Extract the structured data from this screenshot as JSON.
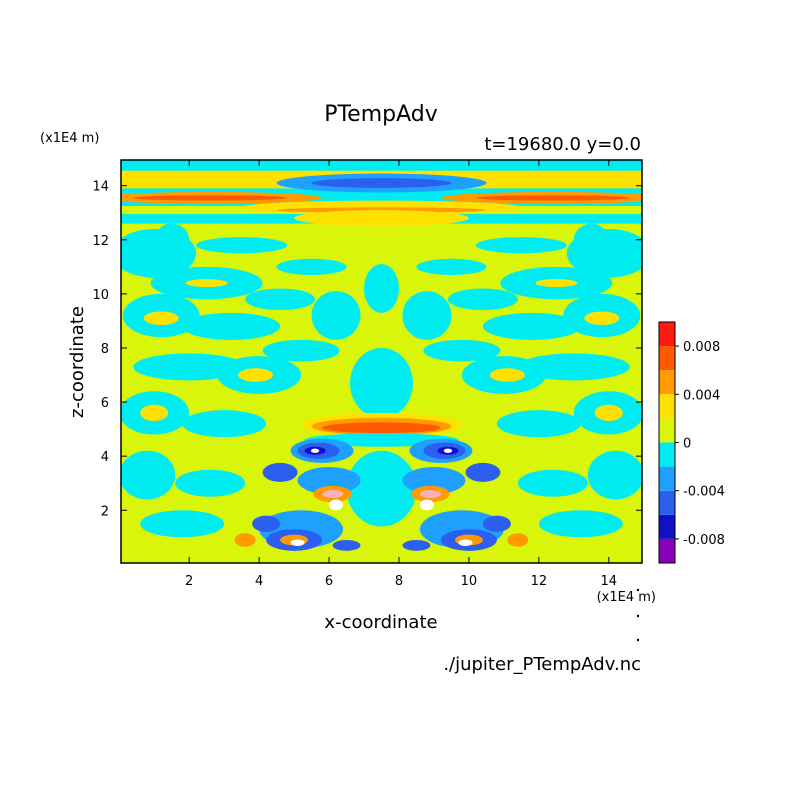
{
  "chart_data": {
    "type": "heatmap",
    "title": "PTempAdv",
    "subtitle": "t=19680.0 y=0.0",
    "xlabel": "x-coordinate",
    "ylabel": "z-coordinate",
    "x_unit": "(x1E4 m)",
    "z_unit": "(x1E4 m)",
    "xlim": [
      0.05,
      14.95
    ],
    "ylim": [
      0.05,
      14.95
    ],
    "x_ticks": [
      2,
      4,
      6,
      8,
      10,
      12,
      14
    ],
    "y_ticks": [
      2,
      4,
      6,
      8,
      10,
      12,
      14
    ],
    "x_tick_labels": [
      "2",
      "4",
      "6",
      "8",
      "10",
      "12",
      "14"
    ],
    "y_tick_labels": [
      "2",
      "4",
      "6",
      "8",
      "10",
      "12",
      "14"
    ],
    "source_file": "./jupiter_PTempAdv.nc",
    "colorbar": {
      "levels": [
        -0.01,
        -0.008,
        -0.006,
        -0.004,
        -0.002,
        0,
        0.002,
        0.004,
        0.006,
        0.008,
        0.01
      ],
      "colors": [
        "#8a00b8",
        "#1010c8",
        "#2a5ff0",
        "#1ea0ff",
        "#00ecf0",
        "#d8f50a",
        "#ffe100",
        "#ff9a00",
        "#ff5a00",
        "#ff1a10",
        "#ffb0b8"
      ],
      "tick_values": [
        0.008,
        0.004,
        0,
        -0.004,
        -0.008
      ],
      "tick_labels": [
        "0.008",
        "0.004",
        "0",
        "-0.004",
        "-0.008"
      ]
    },
    "approx_regions": [
      {
        "x": [
          0.05,
          14.95
        ],
        "z": [
          13.3,
          13.9
        ],
        "value": 0.005,
        "note": "warm band near top"
      },
      {
        "x": [
          4.5,
          10.5
        ],
        "z": [
          13.9,
          14.5
        ],
        "value": -0.004,
        "note": "cool band near top"
      },
      {
        "x": [
          5.2,
          9.8
        ],
        "z": [
          4.8,
          5.6
        ],
        "value": 0.006,
        "note": "warm arc at mid-height"
      },
      {
        "x": [
          4.6,
          10.4
        ],
        "z": [
          0.1,
          2.9
        ],
        "value": -0.006,
        "note": "cool symmetric cells near bottom"
      }
    ]
  }
}
